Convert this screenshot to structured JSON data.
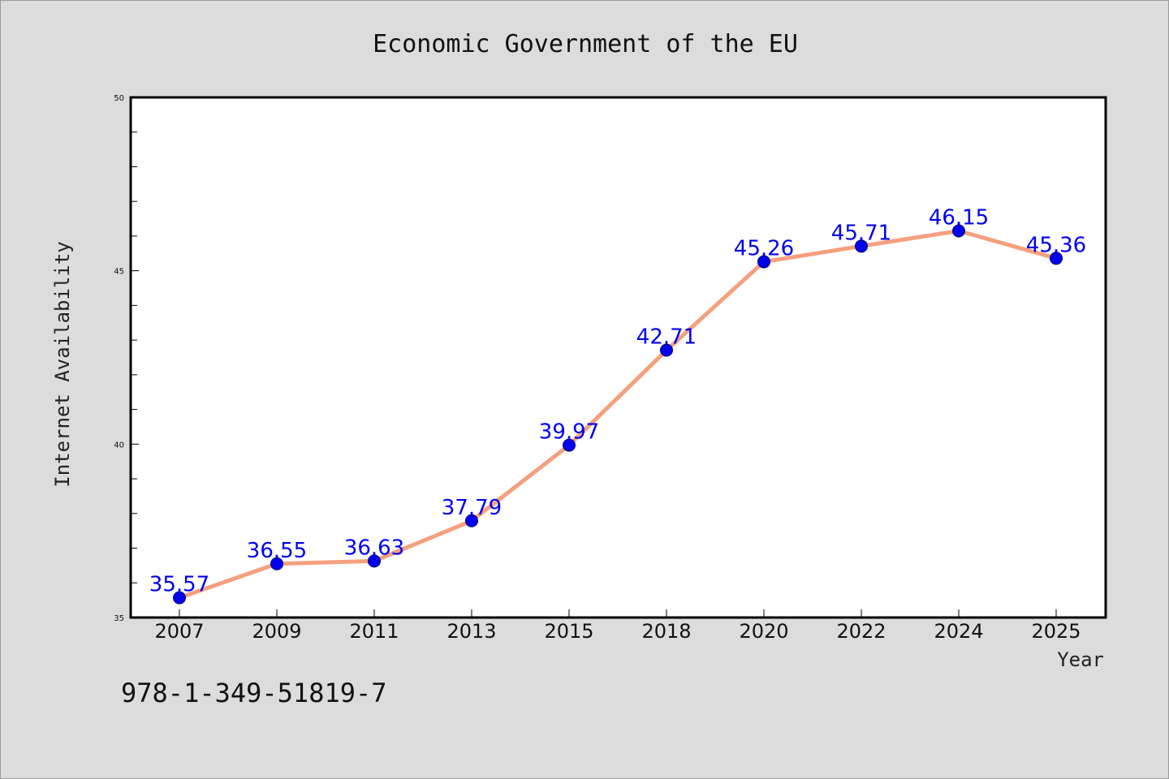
{
  "isbn": "978-1-349-51819-7",
  "colors": {
    "background": "#dcdcdc",
    "plot_background": "#ffffff",
    "line": "#f4a07e",
    "marker": "#0000ee",
    "data_label": "#0000ee"
  },
  "chart_data": {
    "type": "line",
    "title": "Economic Government of the EU",
    "xlabel": "Year",
    "ylabel": "Internet Availability",
    "categories": [
      "2007",
      "2009",
      "2011",
      "2013",
      "2015",
      "2018",
      "2020",
      "2022",
      "2024",
      "2025"
    ],
    "series": [
      {
        "values": [
          35.57,
          36.55,
          36.63,
          37.79,
          39.97,
          42.71,
          45.26,
          45.71,
          46.15,
          45.36
        ],
        "labels": [
          "35.57",
          "36.55",
          "36.63",
          "37.79",
          "39.97",
          "42.71",
          "45.26",
          "45.71",
          "46.15",
          "45.36"
        ]
      }
    ],
    "ylim": [
      35,
      50
    ],
    "yticks": [
      "35",
      "40",
      "45",
      "50"
    ],
    "y_minor_step": 1,
    "grid": false,
    "legend": "none"
  }
}
